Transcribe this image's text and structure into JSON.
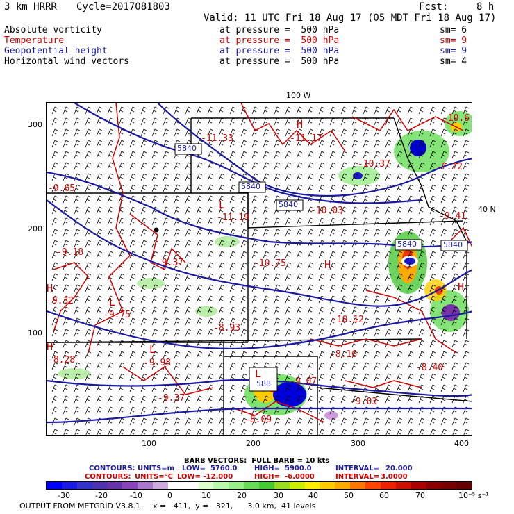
{
  "header": {
    "model": "3 km HRRR",
    "cycle": "Cycle=2017081803",
    "fcst_label": "Fcst:",
    "fcst_value": "8 h",
    "valid": "Valid: 11 UTC Fri 18 Aug 17 (05 MDT Fri 18 Aug 17)"
  },
  "fields": [
    {
      "name": "Absolute vorticity",
      "at": "at pressure =  500 hPa",
      "sm": "sm= 6",
      "color": "#000000"
    },
    {
      "name": "Temperature",
      "at": "at pressure =  500 hPa",
      "sm": "sm= 9",
      "color": "#d00000"
    },
    {
      "name": "Geopotential height",
      "at": "at pressure =  500 hPa",
      "sm": "sm= 9",
      "color": "#1a1aa0"
    },
    {
      "name": "Horizontal wind vectors",
      "at": "at pressure =  500 hPa",
      "sm": "sm= 4",
      "color": "#000000"
    }
  ],
  "map": {
    "top_label": "100 W",
    "right_label": "40 N",
    "y_ticks": [
      "300",
      "200",
      "100"
    ],
    "x_ticks": [
      "100",
      "200",
      "300",
      "400"
    ],
    "height_labels": [
      "5840",
      "5840",
      "5840",
      "5840",
      "5840",
      "588"
    ],
    "temp_labels": [
      "-9.65",
      "-11.33",
      "-11.17",
      "-10.37",
      "-10.03",
      "-11.19",
      "-9.18",
      "-9.37",
      "-10.75",
      "-9.32",
      "-9.75",
      "-8.93",
      "-10.12",
      "-8.28",
      "-9.98",
      "-8.16",
      "-9.37",
      "-8.09",
      "-9.07",
      "-9.03",
      "-8.40",
      "-10.6",
      "-7.72",
      "-9.41"
    ],
    "hl_markers": [
      "H",
      "L",
      "H",
      "L",
      "H",
      "H",
      "L",
      "H",
      "L"
    ]
  },
  "footer": {
    "barb_line": "BARB VECTORS:  FULL BARB = 10 kts",
    "contours_blue": {
      "label": "CONTOURS:",
      "units": "UNITS=m",
      "low": "LOW=  5760.0",
      "high": "HIGH=  5900.0",
      "interval": "INTERVAL=",
      "interval_val": "20.000"
    },
    "contours_red": {
      "label": "CONTOURS:",
      "units": "UNITS=°C",
      "low": "LOW= -12.000",
      "high": "HIGH=  -6.0000",
      "interval": "INTERVAL=",
      "interval_val": "3.0000"
    },
    "colorbar_ticks": [
      "-30",
      "-20",
      "-10",
      "0",
      "10",
      "20",
      "30",
      "40",
      "50",
      "60",
      "70"
    ],
    "colorbar_unit": "10⁻⁵ s⁻¹",
    "output": "OUTPUT FROM METGRID V3.8.1",
    "grid_info": "x =   411,  y =   321,      3.0 km,  41 levels"
  },
  "colors": {
    "geopotential": "#1a1aa0",
    "temperature": "#d00000",
    "vorticity_pos": "#33cc33",
    "vorticity_neg": "#1010e0"
  }
}
